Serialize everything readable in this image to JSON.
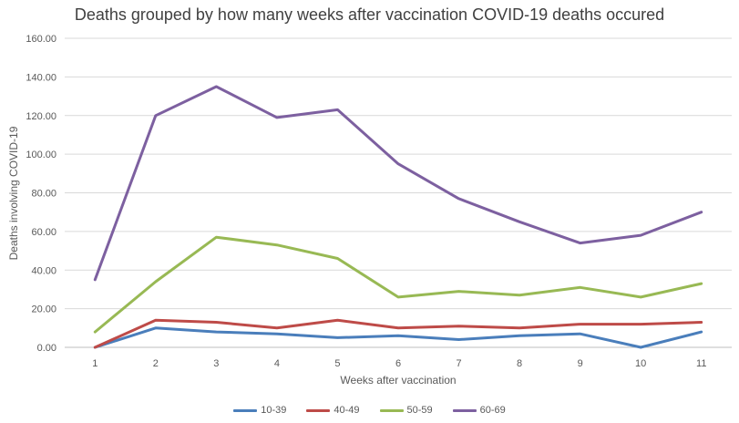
{
  "chart_data": {
    "type": "line",
    "title": "Deaths grouped by how many weeks after vaccination COVID-19 deaths occured",
    "xlabel": "Weeks after vaccination",
    "ylabel": "Deaths involving COVID-19",
    "categories": [
      "1",
      "2",
      "3",
      "4",
      "5",
      "6",
      "7",
      "8",
      "9",
      "10",
      "11"
    ],
    "ylim": [
      0,
      160
    ],
    "ytick_values": [
      0,
      20,
      40,
      60,
      80,
      100,
      120,
      140,
      160
    ],
    "ytick_labels": [
      "0.00",
      "20.00",
      "40.00",
      "60.00",
      "80.00",
      "100.00",
      "120.00",
      "140.00",
      "160.00"
    ],
    "grid": true,
    "legend_position": "bottom",
    "series": [
      {
        "name": "10-39",
        "color": "#4A7EBB",
        "values": [
          0,
          10,
          8,
          7,
          5,
          6,
          4,
          6,
          7,
          0,
          8
        ]
      },
      {
        "name": "40-49",
        "color": "#BE4B48",
        "values": [
          0,
          14,
          13,
          10,
          14,
          10,
          11,
          10,
          12,
          12,
          13
        ]
      },
      {
        "name": "50-59",
        "color": "#98B954",
        "values": [
          8,
          34,
          57,
          53,
          46,
          26,
          29,
          27,
          31,
          26,
          33
        ]
      },
      {
        "name": "60-69",
        "color": "#7D60A0",
        "values": [
          35,
          120,
          135,
          119,
          123,
          95,
          77,
          65,
          54,
          58,
          70
        ]
      }
    ]
  }
}
